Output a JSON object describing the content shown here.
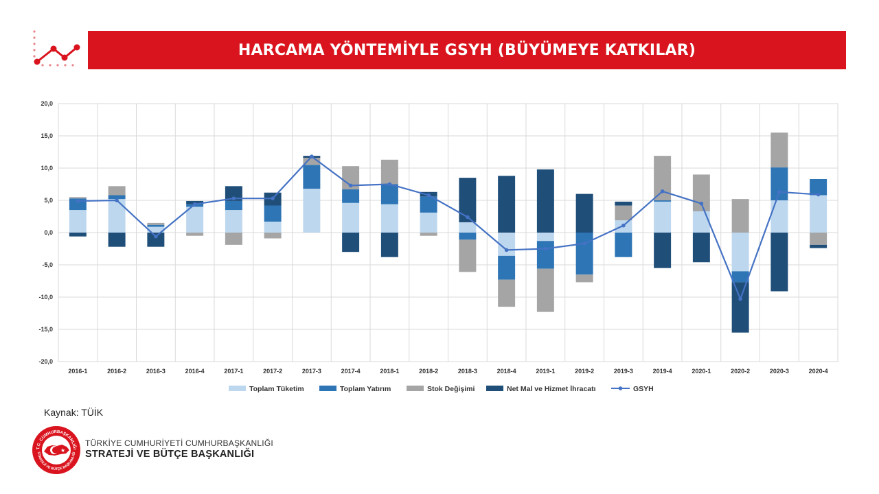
{
  "header": {
    "title": "HARCAMA YÖNTEMİYLE GSYH (BÜYÜMEYE KATKILAR)",
    "accent_color": "#d9141e"
  },
  "decoration": {
    "icon": "trend-line-icon"
  },
  "chart_data": {
    "type": "bar",
    "stacked": true,
    "categories": [
      "2016-1",
      "2016-2",
      "2016-3",
      "2016-4",
      "2017-1",
      "2017-2",
      "2017-3",
      "2017-4",
      "2018-1",
      "2018-2",
      "2018-3",
      "2018-4",
      "2019-1",
      "2019-2",
      "2019-3",
      "2019-4",
      "2020-1",
      "2020-2",
      "2020-3",
      "2020-4"
    ],
    "ylim": [
      -20,
      20
    ],
    "ytick_labels": [
      "20,0",
      "15,0",
      "10,0",
      "5,0",
      "0,0",
      "-5,0",
      "-10,0",
      "-15,0",
      "-20,0"
    ],
    "grid": true,
    "legend_position": "bottom",
    "series": [
      {
        "name": "Toplam Tüketim",
        "type": "bar",
        "color": "#bdd7ee",
        "values": [
          3.5,
          5.2,
          0.9,
          4.0,
          3.5,
          1.7,
          6.8,
          4.6,
          4.4,
          3.1,
          1.6,
          -3.6,
          -1.3,
          0.0,
          1.9,
          4.8,
          3.3,
          -6.0,
          5.0,
          5.8
        ]
      },
      {
        "name": "Toplam Yatırım",
        "type": "bar",
        "color": "#2e75b6",
        "values": [
          1.8,
          0.6,
          0.3,
          0.4,
          1.4,
          2.5,
          3.7,
          2.1,
          3.1,
          2.5,
          -1.1,
          -3.7,
          -4.3,
          -6.5,
          -3.8,
          0.2,
          0.0,
          -1.7,
          5.1,
          2.5
        ]
      },
      {
        "name": "Stok Değişimi",
        "type": "bar",
        "color": "#a5a5a5",
        "values": [
          0.2,
          1.4,
          0.3,
          -0.5,
          -1.9,
          -0.9,
          1.1,
          3.6,
          3.8,
          -0.5,
          -5.0,
          -4.2,
          -6.7,
          -1.2,
          2.3,
          6.9,
          5.7,
          5.2,
          5.4,
          -1.9
        ]
      },
      {
        "name": "Net Mal ve Hizmet İhracatı",
        "type": "bar",
        "color": "#1f4e79",
        "values": [
          -0.6,
          -2.2,
          -2.2,
          0.5,
          2.3,
          2.0,
          0.3,
          -3.0,
          -3.8,
          0.7,
          6.9,
          8.8,
          9.8,
          6.0,
          0.6,
          -5.5,
          -4.6,
          -7.8,
          -9.1,
          -0.5
        ]
      },
      {
        "name": "GSYH",
        "type": "line",
        "color": "#4472c4",
        "values": [
          4.9,
          5.0,
          -0.6,
          4.4,
          5.3,
          5.3,
          11.8,
          7.3,
          7.5,
          5.8,
          2.4,
          -2.7,
          -2.5,
          -1.7,
          1.1,
          6.4,
          4.5,
          -10.3,
          6.3,
          5.9
        ]
      }
    ]
  },
  "footer": {
    "source": "Kaynak: TÜİK",
    "org_line1": "TÜRKİYE CUMHURİYETİ CUMHURBAŞKANLIĞI",
    "org_line2": "STRATEJİ VE BÜTÇE BAŞKANLIĞI",
    "seal_text_top": "T.C. CUMHURBAŞKANLIĞI",
    "seal_text_bottom": "STRATEJİ VE BÜTÇE BAŞKANLIĞI"
  }
}
